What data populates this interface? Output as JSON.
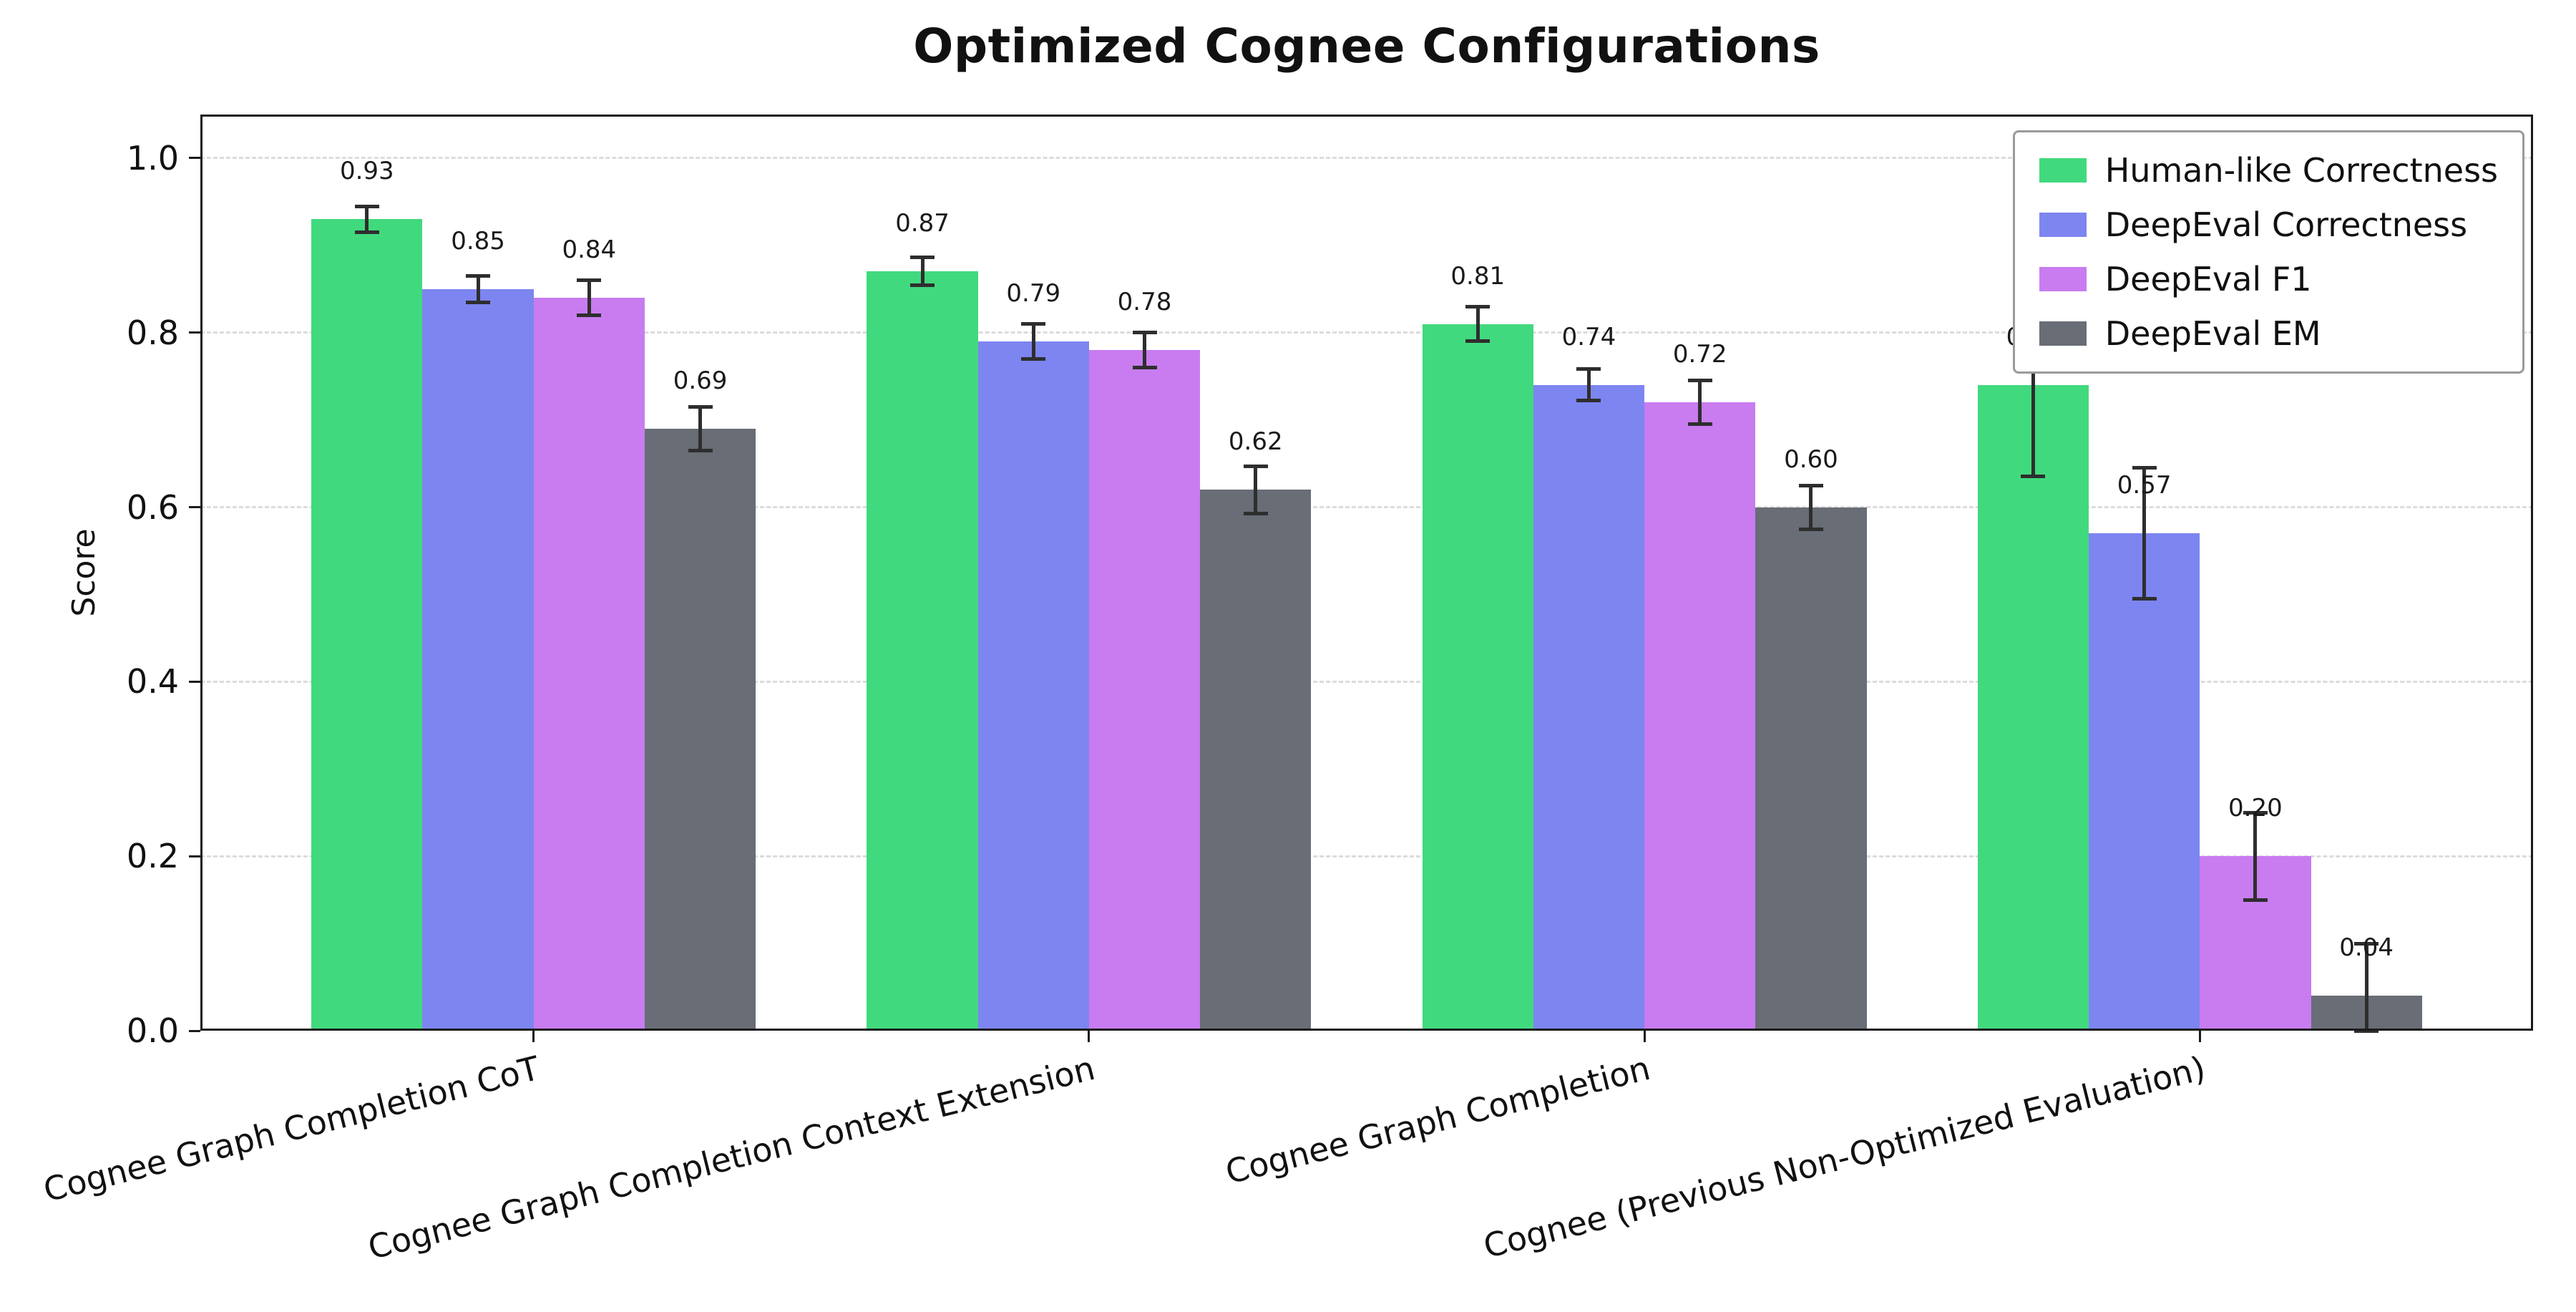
{
  "title": "Optimized Cognee Configurations",
  "ylabel": "Score",
  "chart_data": {
    "type": "bar",
    "title": "Optimized Cognee Configurations",
    "xlabel": "",
    "ylabel": "Score",
    "ylim": [
      0,
      1.05
    ],
    "yticks": [
      0.0,
      0.2,
      0.4,
      0.6,
      0.8,
      1.0
    ],
    "grid": "horizontal-dashed",
    "legend_position": "upper-right",
    "error_bars": true,
    "categories": [
      "Cognee Graph Completion CoT",
      "Cognee Graph Completion Context Extension",
      "Cognee Graph Completion",
      "Cognee (Previous Non-Optimized Evaluation)"
    ],
    "series": [
      {
        "name": "Human-like Correctness",
        "color": "#41d97e",
        "values": [
          0.93,
          0.87,
          0.81,
          0.74
        ],
        "errors": [
          0.015,
          0.016,
          0.02,
          0.105
        ],
        "labels": [
          "0.93",
          "0.87",
          "0.81",
          "0.74"
        ]
      },
      {
        "name": "DeepEval Correctness",
        "color": "#7d85f0",
        "values": [
          0.85,
          0.79,
          0.74,
          0.57
        ],
        "errors": [
          0.015,
          0.02,
          0.018,
          0.075
        ],
        "labels": [
          "0.85",
          "0.79",
          "0.74",
          "0.57"
        ]
      },
      {
        "name": "DeepEval F1",
        "color": "#c87cf0",
        "values": [
          0.84,
          0.78,
          0.72,
          0.2
        ],
        "errors": [
          0.02,
          0.02,
          0.025,
          0.05
        ],
        "labels": [
          "0.84",
          "0.78",
          "0.72",
          "0.20"
        ]
      },
      {
        "name": "DeepEval EM",
        "color": "#686d76",
        "values": [
          0.69,
          0.62,
          0.6,
          0.04
        ],
        "errors": [
          0.025,
          0.027,
          0.025,
          0.06
        ],
        "labels": [
          "0.69",
          "0.62",
          "0.60",
          "0.04"
        ]
      }
    ]
  }
}
